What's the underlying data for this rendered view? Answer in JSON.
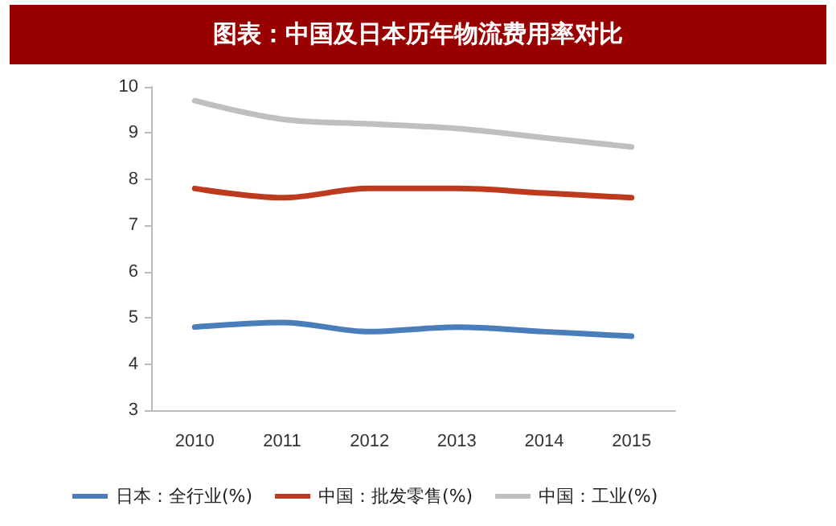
{
  "chart_data": {
    "type": "line",
    "title": "图表：中国及日本历年物流费用率对比",
    "categories": [
      "2010",
      "2011",
      "2012",
      "2013",
      "2014",
      "2015"
    ],
    "series": [
      {
        "name": "日本：全行业(%)",
        "color": "#4a7ebb",
        "values": [
          4.8,
          4.9,
          4.7,
          4.8,
          4.7,
          4.6
        ]
      },
      {
        "name": "中国：批发零售(%)",
        "color": "#be3a1e",
        "values": [
          7.8,
          7.6,
          7.8,
          7.8,
          7.7,
          7.6
        ]
      },
      {
        "name": "中国：工业(%)",
        "color": "#bfbfbf",
        "values": [
          9.7,
          9.3,
          9.2,
          9.1,
          8.9,
          8.7
        ]
      }
    ],
    "ylim": [
      3,
      10
    ],
    "yticks": [
      3,
      4,
      5,
      6,
      7,
      8,
      9,
      10
    ],
    "grid": false,
    "legend": "bottom",
    "marker": "none",
    "line_style": "solid"
  }
}
